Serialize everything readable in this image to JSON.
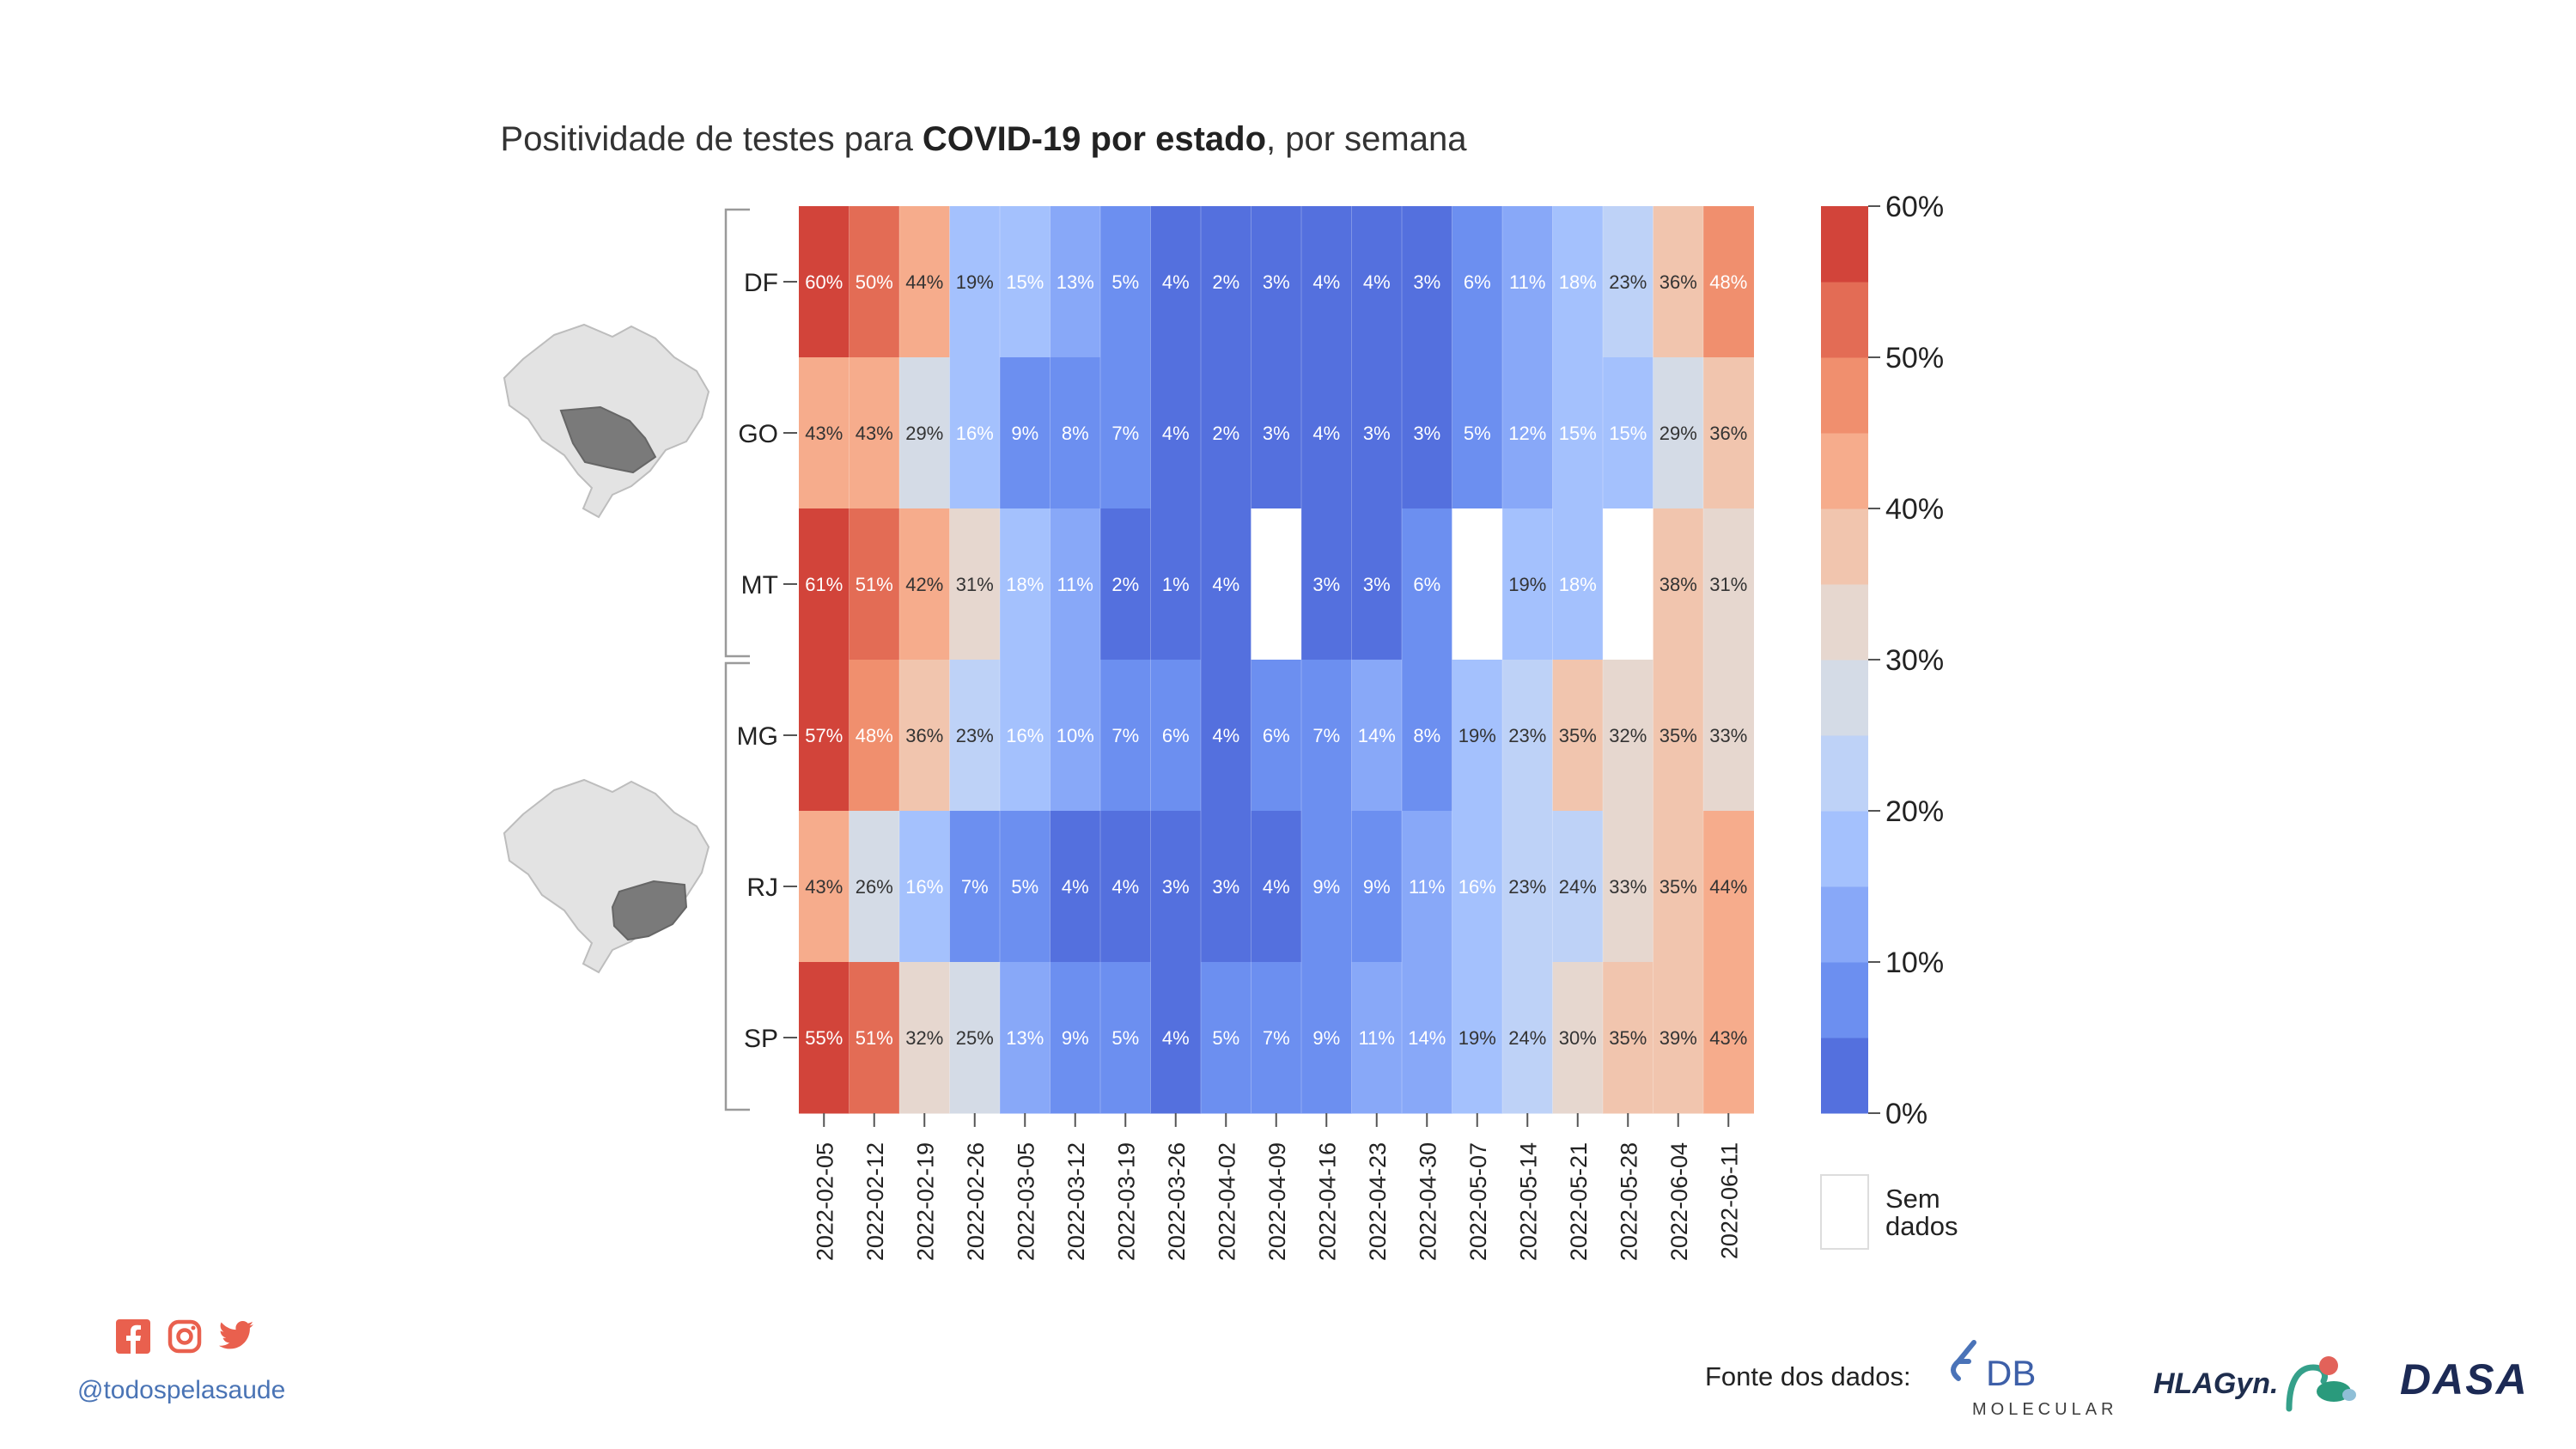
{
  "title": {
    "prefix": "Positividade de testes para ",
    "bold": "COVID-19 por estado",
    "suffix": ", por semana"
  },
  "chart_data": {
    "type": "heatmap",
    "x": [
      "2022-02-05",
      "2022-02-12",
      "2022-02-19",
      "2022-02-26",
      "2022-03-05",
      "2022-03-12",
      "2022-03-19",
      "2022-03-26",
      "2022-04-02",
      "2022-04-09",
      "2022-04-16",
      "2022-04-23",
      "2022-04-30",
      "2022-05-07",
      "2022-05-14",
      "2022-05-21",
      "2022-05-28",
      "2022-06-04",
      "2022-06-11"
    ],
    "y": [
      "DF",
      "GO",
      "MT",
      "MG",
      "RJ",
      "SP"
    ],
    "values": [
      [
        60,
        50,
        44,
        19,
        15,
        13,
        5,
        4,
        2,
        3,
        4,
        4,
        3,
        6,
        11,
        18,
        23,
        36,
        48
      ],
      [
        43,
        43,
        29,
        16,
        9,
        8,
        7,
        4,
        2,
        3,
        4,
        3,
        3,
        5,
        12,
        15,
        15,
        29,
        36
      ],
      [
        61,
        51,
        42,
        31,
        18,
        11,
        2,
        1,
        4,
        null,
        3,
        3,
        6,
        null,
        19,
        18,
        null,
        38,
        31
      ],
      [
        57,
        48,
        36,
        23,
        16,
        10,
        7,
        6,
        4,
        6,
        7,
        14,
        8,
        19,
        23,
        35,
        32,
        35,
        33
      ],
      [
        43,
        26,
        16,
        7,
        5,
        4,
        4,
        3,
        3,
        4,
        9,
        9,
        11,
        16,
        23,
        24,
        33,
        35,
        44
      ],
      [
        55,
        51,
        32,
        25,
        13,
        9,
        5,
        4,
        5,
        7,
        9,
        11,
        14,
        19,
        24,
        30,
        35,
        39,
        43
      ]
    ],
    "labels": [
      [
        "60%",
        "50%",
        "44%",
        "19%",
        "15%",
        "13%",
        "5%",
        "4%",
        "2%",
        "3%",
        "4%",
        "4%",
        "3%",
        "6%",
        "11%",
        "18%",
        "23%",
        "36%",
        "48%"
      ],
      [
        "43%",
        "43%",
        "29%",
        "16%",
        "9%",
        "8%",
        "7%",
        "4%",
        "2%",
        "3%",
        "4%",
        "3%",
        "3%",
        "5%",
        "12%",
        "15%",
        "15%",
        "29%",
        "36%"
      ],
      [
        "61%",
        "51%",
        "42%",
        "31%",
        "18%",
        "11%",
        "2%",
        "1%",
        "4%",
        "",
        "3%",
        "3%",
        "6%",
        "",
        "19%",
        "18%",
        "",
        "38%",
        "31%"
      ],
      [
        "57%",
        "48%",
        "36%",
        "23%",
        "16%",
        "10%",
        "7%",
        "6%",
        "4%",
        "6%",
        "7%",
        "14%",
        "8%",
        "19%",
        "23%",
        "35%",
        "32%",
        "35%",
        "33%"
      ],
      [
        "43%",
        "26%",
        "16%",
        "7%",
        "5%",
        "4%",
        "4%",
        "3%",
        "3%",
        "4%",
        "9%",
        "9%",
        "11%",
        "16%",
        "23%",
        "24%",
        "33%",
        "35%",
        "44%"
      ],
      [
        "55%",
        "51%",
        "32%",
        "25%",
        "13%",
        "9%",
        "5%",
        "4%",
        "5%",
        "7%",
        "9%",
        "11%",
        "14%",
        "19%",
        "24%",
        "30%",
        "35%",
        "39%",
        "43%"
      ]
    ],
    "groups": [
      [
        "DF",
        "GO",
        "MT"
      ],
      [
        "MG",
        "RJ",
        "SP"
      ]
    ],
    "colorbar": {
      "range": [
        0,
        60
      ],
      "ticks": [
        "0%",
        "10%",
        "20%",
        "30%",
        "40%",
        "50%",
        "60%"
      ],
      "bins": [
        "#5470de",
        "#6c8ff0",
        "#88a8f8",
        "#a4c1fd",
        "#bed2f7",
        "#d4dbe6",
        "#e6d7cf",
        "#f1c5ae",
        "#f6ac8c",
        "#f08f6e",
        "#e36c55",
        "#d2443a"
      ]
    },
    "missing_label": "Sem dados"
  },
  "social": {
    "icons": [
      "facebook-icon",
      "instagram-icon",
      "twitter-icon"
    ],
    "handle": "@todospelasaude",
    "color": "#e9604e"
  },
  "source": {
    "label": "Fonte dos dados:",
    "logos": [
      {
        "name": "db-molecular-logo",
        "text_main": "DB",
        "text_sub": "MOLECULAR"
      },
      {
        "name": "hlagyn-logo",
        "text": "HLAGyn."
      },
      {
        "name": "dasa-logo",
        "text": "DASA"
      }
    ]
  }
}
